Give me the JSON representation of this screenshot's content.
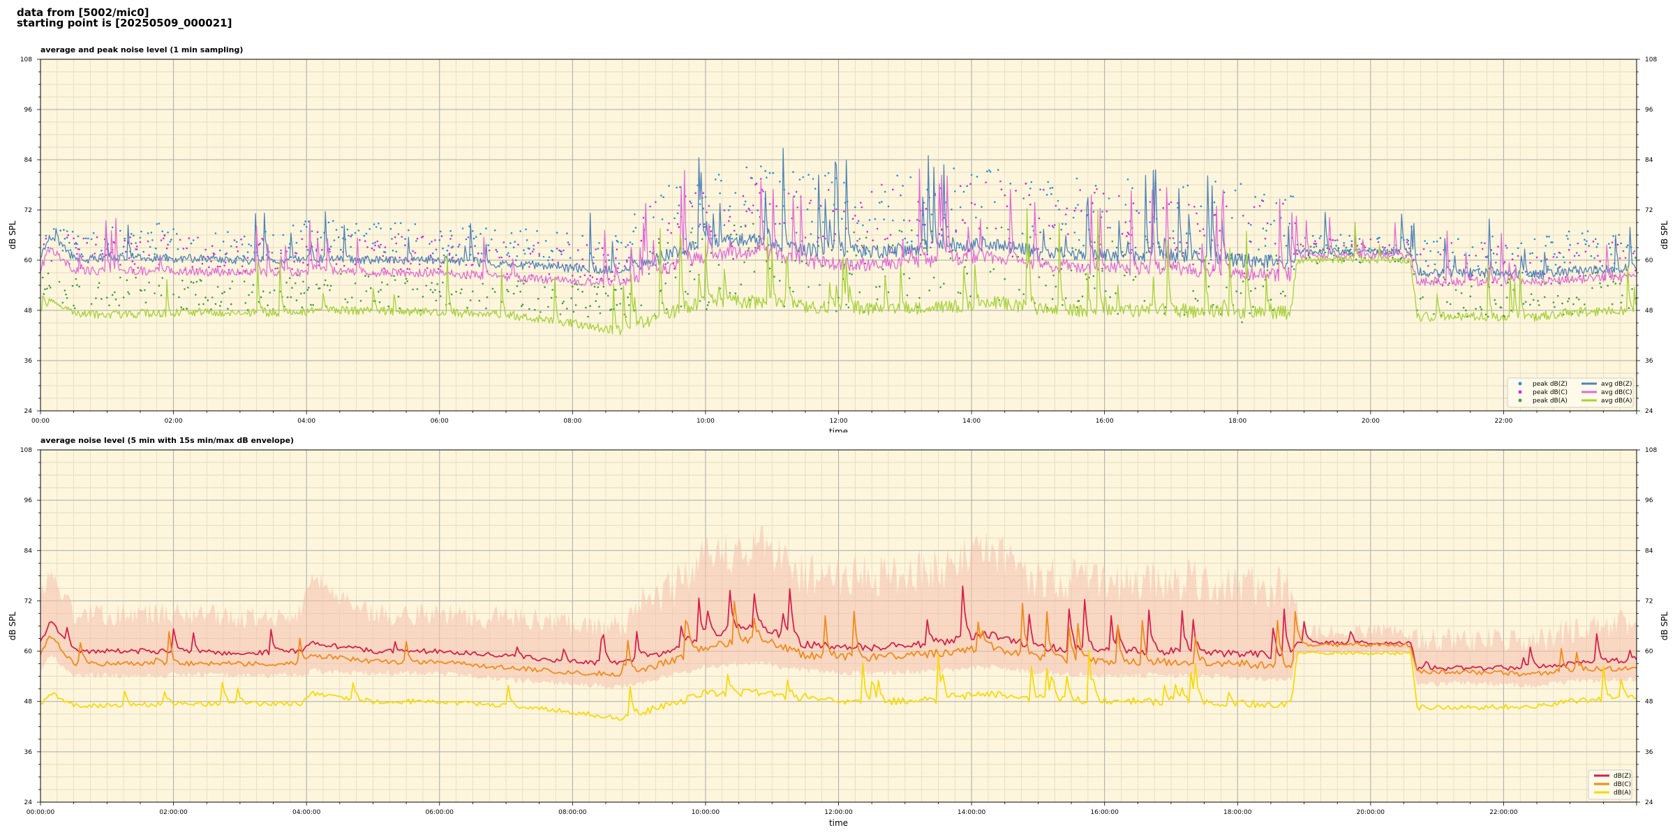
{
  "header": {
    "line1": "data from [5002/mic0]",
    "line2": "starting point is [20250509_000021]"
  },
  "colors": {
    "background": "#fdf6dc",
    "grid_major": "#a9a9a9",
    "grid_minor": "#d9d2bb",
    "peak_z": "#1f8fd8",
    "peak_c": "#e020d8",
    "peak_a": "#3e9c3e",
    "avg_z": "#4f82b8",
    "avg_c": "#e26cd6",
    "avg_a": "#a6d13a",
    "dbz": "#d6204a",
    "dbc": "#f28a18",
    "dba": "#f7d90a",
    "envelope": "#f5bfae"
  },
  "chart_data": [
    {
      "type": "line",
      "title": "average and peak noise level (1 min sampling)",
      "xlabel": "time",
      "ylabel": "dB SPL",
      "x_unit": "hours",
      "xlim": [
        0,
        24
      ],
      "ylim": [
        24,
        108
      ],
      "yticks": [
        24,
        36,
        48,
        60,
        72,
        84,
        96,
        108
      ],
      "xticks": [
        0,
        2,
        4,
        6,
        8,
        10,
        12,
        14,
        16,
        18,
        20,
        22
      ],
      "xtick_labels": [
        "00:00",
        "02:00",
        "04:00",
        "06:00",
        "08:00",
        "10:00",
        "12:00",
        "14:00",
        "16:00",
        "18:00",
        "20:00",
        "22:00"
      ],
      "grid": true,
      "legend_position": "lower-right",
      "legend_columns": 2,
      "profile_hours": [
        0,
        0.15,
        0.5,
        1,
        2,
        3,
        3.9,
        4.1,
        5,
        6,
        7,
        8,
        8.7,
        9.2,
        10,
        10.8,
        11.5,
        12.5,
        13.5,
        14.3,
        15,
        16,
        17,
        18,
        18.8,
        18.9,
        20,
        20.6,
        20.7,
        21.5,
        22.5,
        23,
        24
      ],
      "series": [
        {
          "name": "peak dB(Z)",
          "kind": "points",
          "color_key": "peak_z",
          "values": [
            66,
            66,
            64,
            64,
            64,
            63,
            64,
            65,
            64,
            64,
            63,
            62,
            61,
            65,
            70,
            71,
            69,
            69,
            70,
            72,
            69,
            68,
            68,
            67,
            66,
            63,
            64,
            63,
            60,
            60,
            60,
            61,
            61
          ]
        },
        {
          "name": "peak dB(C)",
          "kind": "points",
          "color_key": "peak_c",
          "values": [
            63,
            63,
            61,
            61,
            61,
            60,
            61,
            62,
            61,
            61,
            60,
            59,
            58,
            62,
            67,
            68,
            66,
            66,
            67,
            69,
            66,
            65,
            65,
            64,
            63,
            62,
            63,
            62,
            58,
            58,
            58,
            59,
            59
          ]
        },
        {
          "name": "peak dB(A)",
          "kind": "points",
          "color_key": "peak_a",
          "values": [
            52,
            52,
            51,
            51,
            51,
            51,
            52,
            52,
            52,
            51,
            51,
            50,
            49,
            52,
            56,
            57,
            55,
            55,
            56,
            57,
            55,
            54,
            54,
            53,
            53,
            61,
            61,
            61,
            50,
            50,
            50,
            51,
            51
          ]
        },
        {
          "name": "avg dB(Z)",
          "kind": "line",
          "color_key": "avg_z",
          "values": [
            61,
            66,
            60.5,
            60.5,
            60.5,
            60,
            60,
            60.5,
            60,
            60,
            59,
            58,
            57.5,
            60,
            64,
            65,
            62.5,
            62,
            63,
            64,
            62,
            61,
            61,
            60,
            59.5,
            62,
            62,
            62,
            57,
            57,
            56.5,
            57.5,
            58
          ]
        },
        {
          "name": "avg dB(C)",
          "kind": "line",
          "color_key": "avg_c",
          "values": [
            58,
            63,
            57.5,
            57.5,
            57.5,
            57,
            57,
            57.5,
            57,
            57,
            56,
            55,
            54.5,
            57,
            61,
            62,
            59.5,
            59,
            60,
            61,
            59,
            58,
            58,
            57,
            56.5,
            61,
            61,
            61,
            55,
            55,
            54.5,
            55.5,
            56
          ]
        },
        {
          "name": "avg dB(A)",
          "kind": "line",
          "color_key": "avg_a",
          "values": [
            47.5,
            51,
            47,
            47,
            47.5,
            47.5,
            47.5,
            48,
            48,
            47.5,
            47,
            45,
            43,
            46,
            50,
            50,
            49,
            48.5,
            48.5,
            50,
            48.5,
            48,
            48,
            47.5,
            47.5,
            60,
            60,
            60,
            46.5,
            46.5,
            46.5,
            47.5,
            48
          ]
        }
      ]
    },
    {
      "type": "area",
      "title": "average noise level (5 min with 15s min/max dB envelope)",
      "xlabel": "time",
      "ylabel": "dB SPL",
      "x_unit": "hours",
      "xlim": [
        0,
        24
      ],
      "ylim": [
        24,
        108
      ],
      "yticks": [
        24,
        36,
        48,
        60,
        72,
        84,
        96,
        108
      ],
      "xticks": [
        0,
        2,
        4,
        6,
        8,
        10,
        12,
        14,
        16,
        18,
        20,
        22
      ],
      "xtick_labels": [
        "00:00:00",
        "02:00:00",
        "04:00:00",
        "06:00:00",
        "08:00:00",
        "10:00:00",
        "12:00:00",
        "14:00:00",
        "16:00:00",
        "18:00:00",
        "20:00:00",
        "22:00:00"
      ],
      "grid": true,
      "legend_position": "lower-right",
      "legend_columns": 1,
      "profile_hours": [
        0,
        0.15,
        0.5,
        1,
        2,
        3,
        3.9,
        4.1,
        5,
        6,
        7,
        8,
        8.7,
        9.2,
        10,
        10.8,
        11.5,
        12.5,
        13.5,
        14.3,
        15,
        16,
        17,
        18,
        18.8,
        18.9,
        20,
        20.6,
        20.7,
        21.5,
        22.5,
        23,
        24
      ],
      "series": [
        {
          "name": "dB(Z)",
          "kind": "line",
          "color_key": "dbz",
          "values": [
            62,
            67,
            60,
            60,
            60,
            59.5,
            60,
            62,
            60,
            60,
            59,
            57.5,
            57,
            59,
            64,
            66,
            61.5,
            61,
            62,
            64,
            61,
            60,
            60,
            59.5,
            59,
            62,
            62,
            62,
            56,
            56,
            56,
            57,
            58
          ]
        },
        {
          "name": "dB(C)",
          "kind": "line",
          "color_key": "dbc",
          "values": [
            59,
            64,
            57,
            57,
            57,
            57,
            57,
            59,
            57.5,
            57.5,
            56,
            55,
            54.5,
            56,
            61,
            63,
            59,
            58.5,
            59.5,
            61,
            58.5,
            57.5,
            57.5,
            57,
            56.5,
            61.5,
            61.5,
            61.5,
            55,
            55,
            54.5,
            55.5,
            56
          ]
        },
        {
          "name": "dB(A)",
          "kind": "line",
          "color_key": "dba",
          "values": [
            47.5,
            50,
            47,
            47,
            47.5,
            47.5,
            47.5,
            50,
            48,
            48,
            47,
            45.5,
            44,
            46,
            50,
            50,
            48.5,
            48,
            48.5,
            50,
            48.5,
            48,
            48,
            47.5,
            47.5,
            59.5,
            59.5,
            59.5,
            46.5,
            46.5,
            47,
            48,
            49
          ]
        }
      ],
      "envelope": {
        "name": "15s min/max envelope",
        "color_key": "envelope",
        "min": [
          56,
          60,
          55,
          55,
          55,
          55,
          55,
          56,
          55.5,
          55.5,
          54,
          53,
          52,
          54,
          57,
          58,
          56,
          55.5,
          56,
          57,
          55.5,
          55,
          55,
          54.5,
          54,
          60.5,
          60.5,
          60.5,
          53,
          53,
          52.5,
          53.5,
          54
        ],
        "max": [
          72,
          78,
          68,
          68,
          68,
          67,
          68,
          76,
          68,
          68,
          67,
          66,
          65,
          70,
          80,
          84,
          77,
          76,
          78,
          82,
          76,
          75,
          75,
          74,
          73,
          64,
          64,
          64,
          62,
          62,
          61,
          64,
          66
        ]
      }
    }
  ]
}
